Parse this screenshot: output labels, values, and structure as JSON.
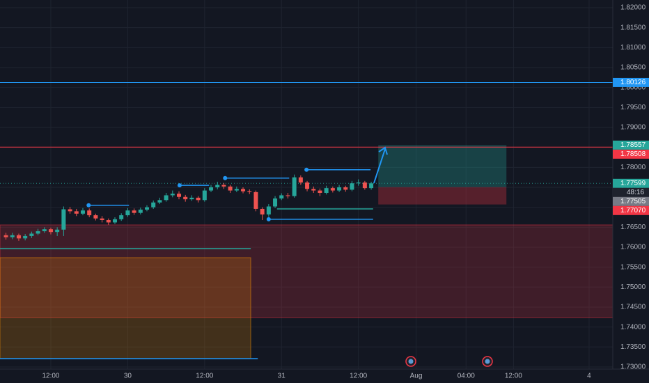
{
  "chart_data": {
    "type": "candlestick",
    "up_color": "#26a69a",
    "down_color": "#ef5350",
    "grid": true,
    "xlim": [
      4.07,
      99.7
    ],
    "xticks": [
      {
        "value": 12,
        "label": "12:00"
      },
      {
        "value": 24,
        "label": "30"
      },
      {
        "value": 36,
        "label": "12:00"
      },
      {
        "value": 48,
        "label": "31"
      },
      {
        "value": 60,
        "label": "12:00"
      },
      {
        "value": 69,
        "label": "Aug"
      },
      {
        "value": 76.8,
        "label": "04:00"
      },
      {
        "value": 84.2,
        "label": "12:00"
      },
      {
        "value": 96,
        "label": "4"
      }
    ],
    "ylim": [
      1.72947,
      1.82192
    ],
    "yticks": [
      {
        "value": 1.82,
        "label": "1.82000"
      },
      {
        "value": 1.815,
        "label": "1.81500"
      },
      {
        "value": 1.81,
        "label": "1.81000"
      },
      {
        "value": 1.805,
        "label": "1.80500"
      },
      {
        "value": 1.8,
        "label": "1.80000"
      },
      {
        "value": 1.795,
        "label": "1.79500"
      },
      {
        "value": 1.79,
        "label": "1.79000"
      },
      {
        "value": 1.785,
        "label": "1.78500"
      },
      {
        "value": 1.78,
        "label": "1.78000"
      },
      {
        "value": 1.775,
        "label": "1.77500"
      },
      {
        "value": 1.77,
        "label": "1.77000"
      },
      {
        "value": 1.765,
        "label": "1.76500"
      },
      {
        "value": 1.76,
        "label": "1.76000"
      },
      {
        "value": 1.755,
        "label": "1.75500"
      },
      {
        "value": 1.75,
        "label": "1.75000"
      },
      {
        "value": 1.745,
        "label": "1.74500"
      },
      {
        "value": 1.74,
        "label": "1.74000"
      },
      {
        "value": 1.735,
        "label": "1.73500"
      },
      {
        "value": 1.73,
        "label": "1.73000"
      }
    ],
    "x": [
      5,
      6,
      7,
      8,
      9,
      10,
      11,
      12,
      13,
      14,
      15,
      16,
      17,
      18,
      19,
      20,
      21,
      22,
      23,
      24,
      25,
      26,
      27,
      28,
      29,
      30,
      31,
      32,
      33,
      34,
      35,
      36,
      37,
      38,
      39,
      40,
      41,
      42,
      43,
      44,
      45,
      46,
      47,
      48,
      49,
      50,
      51,
      52,
      53,
      54,
      55,
      56,
      57,
      58,
      59,
      60,
      61,
      62
    ],
    "open": [
      1.763,
      1.7625,
      1.763,
      1.7622,
      1.7628,
      1.7634,
      1.764,
      1.7645,
      1.7638,
      1.7644,
      1.7695,
      1.769,
      1.7684,
      1.7692,
      1.768,
      1.7672,
      1.7668,
      1.7662,
      1.767,
      1.768,
      1.7692,
      1.7686,
      1.7694,
      1.77,
      1.7712,
      1.7718,
      1.773,
      1.7734,
      1.7726,
      1.772,
      1.7724,
      1.7718,
      1.7742,
      1.775,
      1.7756,
      1.7752,
      1.7742,
      1.7746,
      1.774,
      1.7738,
      1.7696,
      1.7682,
      1.7702,
      1.7722,
      1.773,
      1.7728,
      1.7775,
      1.7762,
      1.7746,
      1.7742,
      1.7736,
      1.7748,
      1.7742,
      1.775,
      1.7744,
      1.776,
      1.7762,
      1.7748
    ],
    "high": [
      1.7636,
      1.7636,
      1.7634,
      1.7633,
      1.7639,
      1.7646,
      1.765,
      1.7649,
      1.765,
      1.7702,
      1.7701,
      1.7696,
      1.7698,
      1.7697,
      1.7684,
      1.7678,
      1.7672,
      1.7675,
      1.7685,
      1.7698,
      1.7697,
      1.7699,
      1.7705,
      1.7717,
      1.7724,
      1.7736,
      1.7742,
      1.774,
      1.7731,
      1.773,
      1.7728,
      1.7748,
      1.7756,
      1.7764,
      1.7761,
      1.7756,
      1.7752,
      1.775,
      1.7745,
      1.7742,
      1.77,
      1.7708,
      1.7728,
      1.7735,
      1.7736,
      1.7782,
      1.778,
      1.7766,
      1.7752,
      1.7747,
      1.7754,
      1.7752,
      1.7756,
      1.7754,
      1.7766,
      1.777,
      1.7766,
      1.7764
    ],
    "low": [
      1.7619,
      1.762,
      1.7616,
      1.7617,
      1.7623,
      1.763,
      1.7636,
      1.7632,
      1.7628,
      1.7628,
      1.7684,
      1.7678,
      1.768,
      1.7675,
      1.7667,
      1.7662,
      1.7656,
      1.7658,
      1.7666,
      1.7676,
      1.7681,
      1.7682,
      1.769,
      1.7696,
      1.7708,
      1.7714,
      1.7725,
      1.772,
      1.7714,
      1.7716,
      1.7712,
      1.7714,
      1.7738,
      1.7745,
      1.7746,
      1.7736,
      1.7738,
      1.7735,
      1.7733,
      1.769,
      1.7668,
      1.7676,
      1.7698,
      1.7718,
      1.7722,
      1.7724,
      1.7756,
      1.774,
      1.7736,
      1.7728,
      1.7732,
      1.7737,
      1.7738,
      1.7739,
      1.774,
      1.7754,
      1.7744,
      1.7744
    ],
    "close": [
      1.7625,
      1.763,
      1.7622,
      1.7628,
      1.7634,
      1.764,
      1.7645,
      1.7638,
      1.7644,
      1.7695,
      1.769,
      1.7684,
      1.7692,
      1.768,
      1.7672,
      1.7668,
      1.7662,
      1.767,
      1.768,
      1.7692,
      1.7686,
      1.7694,
      1.77,
      1.7712,
      1.7718,
      1.773,
      1.7734,
      1.7726,
      1.772,
      1.7724,
      1.7718,
      1.7742,
      1.775,
      1.7756,
      1.7752,
      1.7742,
      1.7746,
      1.774,
      1.7738,
      1.7696,
      1.7682,
      1.7702,
      1.7722,
      1.773,
      1.7728,
      1.7775,
      1.7762,
      1.7746,
      1.7742,
      1.7736,
      1.7748,
      1.7742,
      1.775,
      1.7744,
      1.776,
      1.7762,
      1.7748,
      1.77599
    ],
    "zones": [
      {
        "top": 1.76558,
        "bottom": 1.74238,
        "from": 4.07,
        "to": 99.7,
        "color": "#f23645"
      },
      {
        "top": 1.75738,
        "bottom": 1.73209,
        "from": 4.07,
        "to": 43.2,
        "color": "#ff9800"
      }
    ],
    "levels": [
      {
        "value": 1.7705,
        "from": 17.9,
        "to": 24.2,
        "color": "#2196f3",
        "dot": true
      },
      {
        "value": 1.7755,
        "from": 32.1,
        "to": 36.7,
        "color": "#2196f3",
        "dot": true
      },
      {
        "value": 1.7773,
        "from": 39.2,
        "to": 49.2,
        "color": "#2196f3",
        "dot": true
      },
      {
        "value": 1.7794,
        "from": 51.9,
        "to": 61.9,
        "color": "#2196f3",
        "dot": true
      },
      {
        "value": 1.767,
        "from": 46.0,
        "to": 62.3,
        "color": "#2196f3",
        "dot": true
      },
      {
        "value": 1.7696,
        "from": 47.3,
        "to": 62.3,
        "color": "#26a69a",
        "dot": false
      },
      {
        "value": 1.75965,
        "from": 4.07,
        "to": 43.2,
        "color": "#26a69a",
        "dot": false
      },
      {
        "value": 1.73209,
        "from": 4.07,
        "to": 44.3,
        "color": "#2196f3",
        "dot": false
      }
    ],
    "position": {
      "from": 63.1,
      "to": 83.1,
      "target": 1.78557,
      "target_color": "#26a69a",
      "entry": 1.77505,
      "entry_color": "#787b86",
      "stop": {
        "value": 1.7707,
        "label": "1.77070"
      },
      "stop_color": "#f23645"
    },
    "price_labels": [
      {
        "value": 1.80126,
        "color": "#2196f3",
        "line": "solid"
      },
      {
        "value": 1.78508,
        "color": "#f23645",
        "line": "solid"
      },
      {
        "value": 1.77599,
        "color": "#26a69a",
        "line": "dotted",
        "countdown": "48:16"
      }
    ]
  }
}
